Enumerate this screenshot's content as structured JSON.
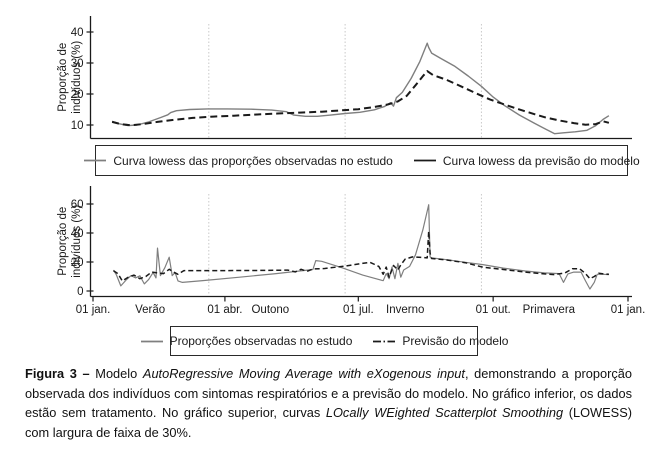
{
  "caption": {
    "segments": [
      {
        "t": "Figura 3 – ",
        "b": true
      },
      {
        "t": "Modelo "
      },
      {
        "t": "AutoRegressive Moving Average with eXogenous input",
        "i": true
      },
      {
        "t": ", demonstrando a proporção observada dos indivíduos com sintomas respiratórios e a previsão do modelo. No gráfico inferior, os dados estão sem tratamento. No gráfico superior, curvas "
      },
      {
        "t": "LOcally WEighted Scatterplot Smoothing",
        "i": true
      },
      {
        "t": " (LOWESS) com largura de faixa de 30%."
      }
    ]
  },
  "colors": {
    "observed": "#7f7f7f",
    "predicted": "#1a1a1a",
    "gridline": "#c9c9c9",
    "axis": "#1a1a1a"
  },
  "chart_data": [
    {
      "type": "line",
      "position": "upper",
      "x_unit": "day_of_year",
      "xlim": [
        0,
        365
      ],
      "ylim": [
        6,
        45
      ],
      "yticks": [
        10,
        20,
        30,
        40
      ],
      "ylabel_lines": [
        "Proporção de",
        "indivíduos (%)"
      ],
      "season_boundary_gridlines_days": [
        79,
        172,
        265
      ],
      "legend_position": "below",
      "series": [
        {
          "name": "Curva lowess das proporções observadas no estudo",
          "color": "#7f7f7f",
          "style": "solid",
          "legend_symbol": "solid",
          "points": [
            [
              13,
              11.2
            ],
            [
              18,
              10.4
            ],
            [
              24,
              9.8
            ],
            [
              30,
              10.0
            ],
            [
              38,
              11.0
            ],
            [
              46,
              12.4
            ],
            [
              51,
              13.3
            ],
            [
              53,
              14.0
            ],
            [
              57,
              14.6
            ],
            [
              66,
              15.0
            ],
            [
              78,
              15.2
            ],
            [
              92,
              15.2
            ],
            [
              108,
              15.1
            ],
            [
              122,
              14.8
            ],
            [
              132,
              14.3
            ],
            [
              137,
              13.2
            ],
            [
              145,
              12.8
            ],
            [
              153,
              12.8
            ],
            [
              162,
              13.2
            ],
            [
              172,
              13.7
            ],
            [
              182,
              14.1
            ],
            [
              192,
              14.9
            ],
            [
              199,
              16.0
            ],
            [
              203,
              17.2
            ],
            [
              205,
              16.1
            ],
            [
              207,
              18.8
            ],
            [
              211,
              20.5
            ],
            [
              217,
              25.0
            ],
            [
              223,
              30.5
            ],
            [
              228,
              36.4
            ],
            [
              229,
              35.0
            ],
            [
              231,
              33.2
            ],
            [
              238,
              31.3
            ],
            [
              247,
              28.9
            ],
            [
              256,
              25.8
            ],
            [
              265,
              22.5
            ],
            [
              273,
              19.0
            ],
            [
              281,
              16.2
            ],
            [
              291,
              13.2
            ],
            [
              301,
              10.6
            ],
            [
              309,
              8.6
            ],
            [
              315,
              7.2
            ],
            [
              321,
              7.5
            ],
            [
              329,
              7.8
            ],
            [
              337,
              8.3
            ],
            [
              343,
              9.8
            ],
            [
              348,
              11.8
            ],
            [
              352,
              13.0
            ]
          ]
        },
        {
          "name": "Curva lowess da previsão do modelo",
          "color": "#1a1a1a",
          "style": "dashed",
          "legend_symbol": "solid",
          "points": [
            [
              13,
              11.0
            ],
            [
              19,
              10.3
            ],
            [
              26,
              9.9
            ],
            [
              34,
              10.3
            ],
            [
              44,
              11.0
            ],
            [
              56,
              11.7
            ],
            [
              68,
              12.3
            ],
            [
              82,
              12.7
            ],
            [
              96,
              13.0
            ],
            [
              112,
              13.4
            ],
            [
              126,
              13.7
            ],
            [
              141,
              14.0
            ],
            [
              156,
              14.3
            ],
            [
              169,
              14.7
            ],
            [
              181,
              15.1
            ],
            [
              192,
              15.8
            ],
            [
              201,
              16.6
            ],
            [
              208,
              17.6
            ],
            [
              214,
              19.4
            ],
            [
              220,
              22.8
            ],
            [
              225,
              25.7
            ],
            [
              228,
              27.4
            ],
            [
              232,
              26.1
            ],
            [
              241,
              24.6
            ],
            [
              251,
              22.5
            ],
            [
              261,
              20.3
            ],
            [
              271,
              18.2
            ],
            [
              279,
              16.9
            ],
            [
              289,
              15.3
            ],
            [
              299,
              13.8
            ],
            [
              309,
              12.4
            ],
            [
              319,
              11.4
            ],
            [
              328,
              10.6
            ],
            [
              336,
              10.1
            ],
            [
              343,
              10.3
            ],
            [
              348,
              11.2
            ],
            [
              352,
              10.7
            ]
          ]
        }
      ]
    },
    {
      "type": "line",
      "position": "lower",
      "x_unit": "day_of_year",
      "xlim": [
        0,
        365
      ],
      "ylim": [
        0,
        70
      ],
      "yticks": [
        0,
        20,
        40,
        60
      ],
      "ylabel_lines": [
        "Proporção de",
        "indivíduos (%)"
      ],
      "season_boundary_gridlines_days": [
        79,
        172,
        265
      ],
      "xticks": {
        "days": [
          0,
          90,
          181,
          273,
          365
        ],
        "labels": [
          "01 jan.",
          "01 abr.",
          "01 jul.",
          "01 out.",
          "01 jan."
        ]
      },
      "season_labels": [
        {
          "label": "Verão",
          "day": 39
        },
        {
          "label": "Outono",
          "day": 121
        },
        {
          "label": "Inverno",
          "day": 213
        },
        {
          "label": "Primavera",
          "day": 311
        }
      ],
      "legend_position": "below",
      "series": [
        {
          "name": "Proporções observadas no estudo",
          "color": "#7f7f7f",
          "style": "solid",
          "legend_symbol": "solid",
          "points": [
            [
              14,
              14.5
            ],
            [
              16,
              11.0
            ],
            [
              19,
              3.5
            ],
            [
              23,
              8.0
            ],
            [
              26,
              10.6
            ],
            [
              29,
              9.0
            ],
            [
              32,
              10.5
            ],
            [
              35,
              4.9
            ],
            [
              38,
              8.0
            ],
            [
              41,
              12.7
            ],
            [
              43,
              9.0
            ],
            [
              44,
              29.6
            ],
            [
              46,
              10.6
            ],
            [
              49,
              16.0
            ],
            [
              52,
              23.3
            ],
            [
              54,
              10.6
            ],
            [
              56,
              12.7
            ],
            [
              58,
              7.0
            ],
            [
              61,
              5.9
            ],
            [
              75,
              7.2
            ],
            [
              100,
              9.5
            ],
            [
              125,
              12.0
            ],
            [
              150,
              14.8
            ],
            [
              152,
              21.0
            ],
            [
              156,
              20.5
            ],
            [
              170,
              16.0
            ],
            [
              184,
              11.0
            ],
            [
              198,
              7.1
            ],
            [
              200,
              12.0
            ],
            [
              202,
              8.5
            ],
            [
              204,
              16.5
            ],
            [
              206,
              8.5
            ],
            [
              208,
              19.0
            ],
            [
              210,
              9.5
            ],
            [
              212,
              14.5
            ],
            [
              216,
              17.0
            ],
            [
              220,
              25.0
            ],
            [
              225,
              42.0
            ],
            [
              229,
              59.5
            ],
            [
              230,
              23.5
            ],
            [
              231,
              22.8
            ],
            [
              242,
              21.5
            ],
            [
              254,
              19.8
            ],
            [
              266,
              18.2
            ],
            [
              280,
              15.8
            ],
            [
              295,
              13.8
            ],
            [
              308,
              12.5
            ],
            [
              318,
              12.0
            ],
            [
              321,
              5.9
            ],
            [
              324,
              11.8
            ],
            [
              328,
              13.0
            ],
            [
              333,
              13.0
            ],
            [
              336,
              7.0
            ],
            [
              339,
              1.4
            ],
            [
              342,
              6.0
            ],
            [
              344,
              11.5
            ],
            [
              348,
              11.5
            ],
            [
              352,
              11.3
            ]
          ]
        },
        {
          "name": "Previsão do modelo",
          "color": "#1a1a1a",
          "style": "dashed",
          "legend_symbol": "dash-dot",
          "points": [
            [
              14,
              14.0
            ],
            [
              17,
              12.0
            ],
            [
              20,
              7.0
            ],
            [
              24,
              9.5
            ],
            [
              28,
              11.0
            ],
            [
              32,
              8.5
            ],
            [
              36,
              10.0
            ],
            [
              40,
              13.0
            ],
            [
              44,
              12.5
            ],
            [
              48,
              12.0
            ],
            [
              52,
              15.0
            ],
            [
              55,
              13.0
            ],
            [
              58,
              11.5
            ],
            [
              62,
              14.1
            ],
            [
              90,
              14.1
            ],
            [
              118,
              14.2
            ],
            [
              133,
              14.4
            ],
            [
              138,
              13.2
            ],
            [
              142,
              15.0
            ],
            [
              146,
              13.5
            ],
            [
              150,
              15.2
            ],
            [
              158,
              15.5
            ],
            [
              166,
              16.5
            ],
            [
              172,
              17.2
            ],
            [
              181,
              18.6
            ],
            [
              189,
              19.8
            ],
            [
              195,
              17.0
            ],
            [
              198,
              11.6
            ],
            [
              200,
              16.5
            ],
            [
              202,
              9.5
            ],
            [
              205,
              17.6
            ],
            [
              208,
              14.5
            ],
            [
              210,
              18.0
            ],
            [
              213,
              22.0
            ],
            [
              218,
              23.5
            ],
            [
              224,
              23.2
            ],
            [
              228,
              22.8
            ],
            [
              229,
              41.2
            ],
            [
              230,
              26.0
            ],
            [
              231,
              22.4
            ],
            [
              242,
              21.3
            ],
            [
              254,
              19.5
            ],
            [
              266,
              16.4
            ],
            [
              280,
              14.8
            ],
            [
              295,
              13.0
            ],
            [
              308,
              11.8
            ],
            [
              315,
              11.3
            ],
            [
              322,
              12.5
            ],
            [
              327,
              15.3
            ],
            [
              332,
              15.4
            ],
            [
              336,
              12.0
            ],
            [
              339,
              8.5
            ],
            [
              342,
              10.0
            ],
            [
              345,
              12.2
            ],
            [
              349,
              11.7
            ],
            [
              352,
              11.6
            ]
          ]
        }
      ]
    }
  ]
}
